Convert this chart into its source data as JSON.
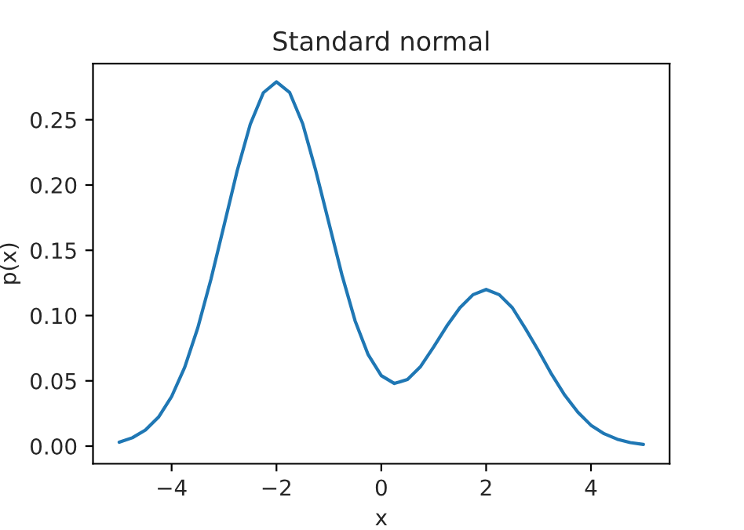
{
  "chart_data": {
    "type": "line",
    "title": "Standard normal",
    "xlabel": "x",
    "ylabel": "p(x)",
    "x": [
      -5,
      -4.75,
      -4.5,
      -4.25,
      -4,
      -3.75,
      -3.5,
      -3.25,
      -3,
      -2.75,
      -2.5,
      -2.25,
      -2,
      -1.75,
      -1.5,
      -1.25,
      -1,
      -0.75,
      -0.5,
      -0.25,
      0,
      0.25,
      0.5,
      0.75,
      1,
      1.25,
      1.5,
      1.75,
      2,
      2.25,
      2.5,
      2.75,
      3,
      3.25,
      3.5,
      3.75,
      4,
      4.25,
      4.5,
      4.75,
      5
    ],
    "series": [
      {
        "color": "#1f77b4",
        "values": [
          0.003,
          0.0064,
          0.0123,
          0.0222,
          0.038,
          0.0604,
          0.0907,
          0.1278,
          0.169,
          0.2108,
          0.2465,
          0.2707,
          0.279,
          0.271,
          0.247,
          0.211,
          0.171,
          0.131,
          0.096,
          0.07,
          0.054,
          0.048,
          0.051,
          0.061,
          0.076,
          0.092,
          0.106,
          0.116,
          0.12,
          0.116,
          0.106,
          0.09,
          0.073,
          0.055,
          0.039,
          0.026,
          0.016,
          0.0095,
          0.0053,
          0.0027,
          0.0013
        ]
      }
    ],
    "xlim": [
      -5.5,
      5.5
    ],
    "ylim": [
      -0.0135,
      0.293
    ],
    "xticks": [
      {
        "value": -4,
        "label": "−4"
      },
      {
        "value": -2,
        "label": "−2"
      },
      0,
      2,
      4
    ],
    "yticks": [
      {
        "value": 0,
        "label": "0.00"
      },
      {
        "value": 0.05,
        "label": "0.05"
      },
      {
        "value": 0.1,
        "label": "0.10"
      },
      {
        "value": 0.15,
        "label": "0.15"
      },
      {
        "value": 0.2,
        "label": "0.20"
      },
      {
        "value": 0.25,
        "label": "0.25"
      }
    ],
    "grid": false,
    "legend": false,
    "marker": "none",
    "line_style": "solid"
  }
}
